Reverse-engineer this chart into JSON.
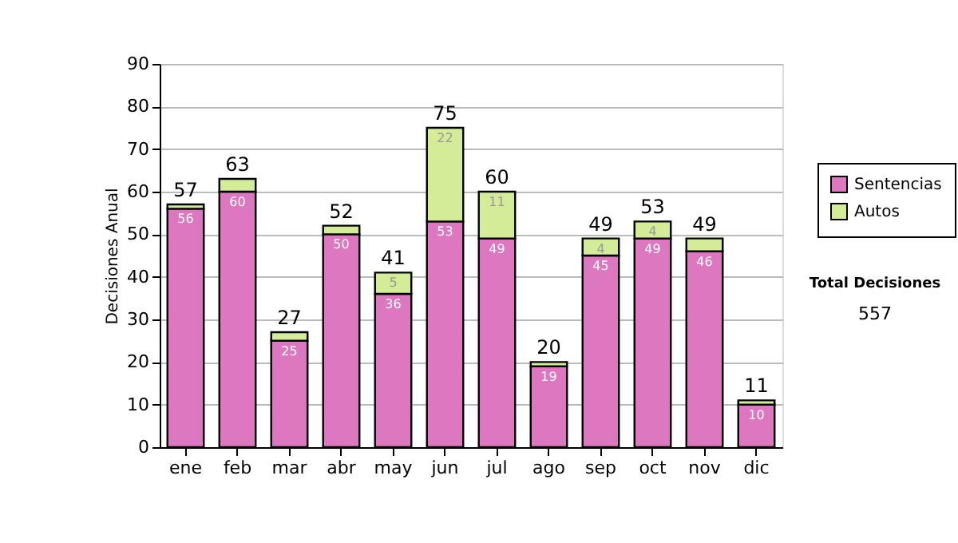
{
  "chart_data": {
    "type": "bar",
    "stacked": true,
    "ylabel": "Decisiones Anual",
    "categories": [
      "ene",
      "feb",
      "mar",
      "abr",
      "may",
      "jun",
      "jul",
      "ago",
      "sep",
      "oct",
      "nov",
      "dic"
    ],
    "series": [
      {
        "name": "Sentencias",
        "color": "#dd77c0",
        "values": [
          56,
          60,
          25,
          50,
          36,
          53,
          49,
          19,
          45,
          49,
          46,
          10
        ],
        "value_labels": [
          "56",
          "60",
          "25",
          "50",
          "36",
          "53",
          "49",
          "19",
          "45",
          "49",
          "46",
          "10"
        ]
      },
      {
        "name": "Autos",
        "color": "#d4ec98",
        "values": [
          1,
          3,
          2,
          2,
          5,
          22,
          11,
          1,
          4,
          4,
          3,
          1
        ],
        "value_labels": [
          null,
          null,
          null,
          null,
          "5",
          "22",
          "11",
          null,
          "4",
          "4",
          null,
          null
        ]
      }
    ],
    "totals": [
      "57",
      "63",
      "27",
      "52",
      "41",
      "75",
      "60",
      "20",
      "49",
      "53",
      "49",
      "11"
    ],
    "ylim": [
      0,
      90
    ],
    "yticks": [
      0,
      10,
      20,
      30,
      40,
      50,
      60,
      70,
      80,
      90
    ],
    "grid": "y",
    "legend": "right",
    "annotations": [
      "Total Decisiones",
      "557"
    ]
  }
}
